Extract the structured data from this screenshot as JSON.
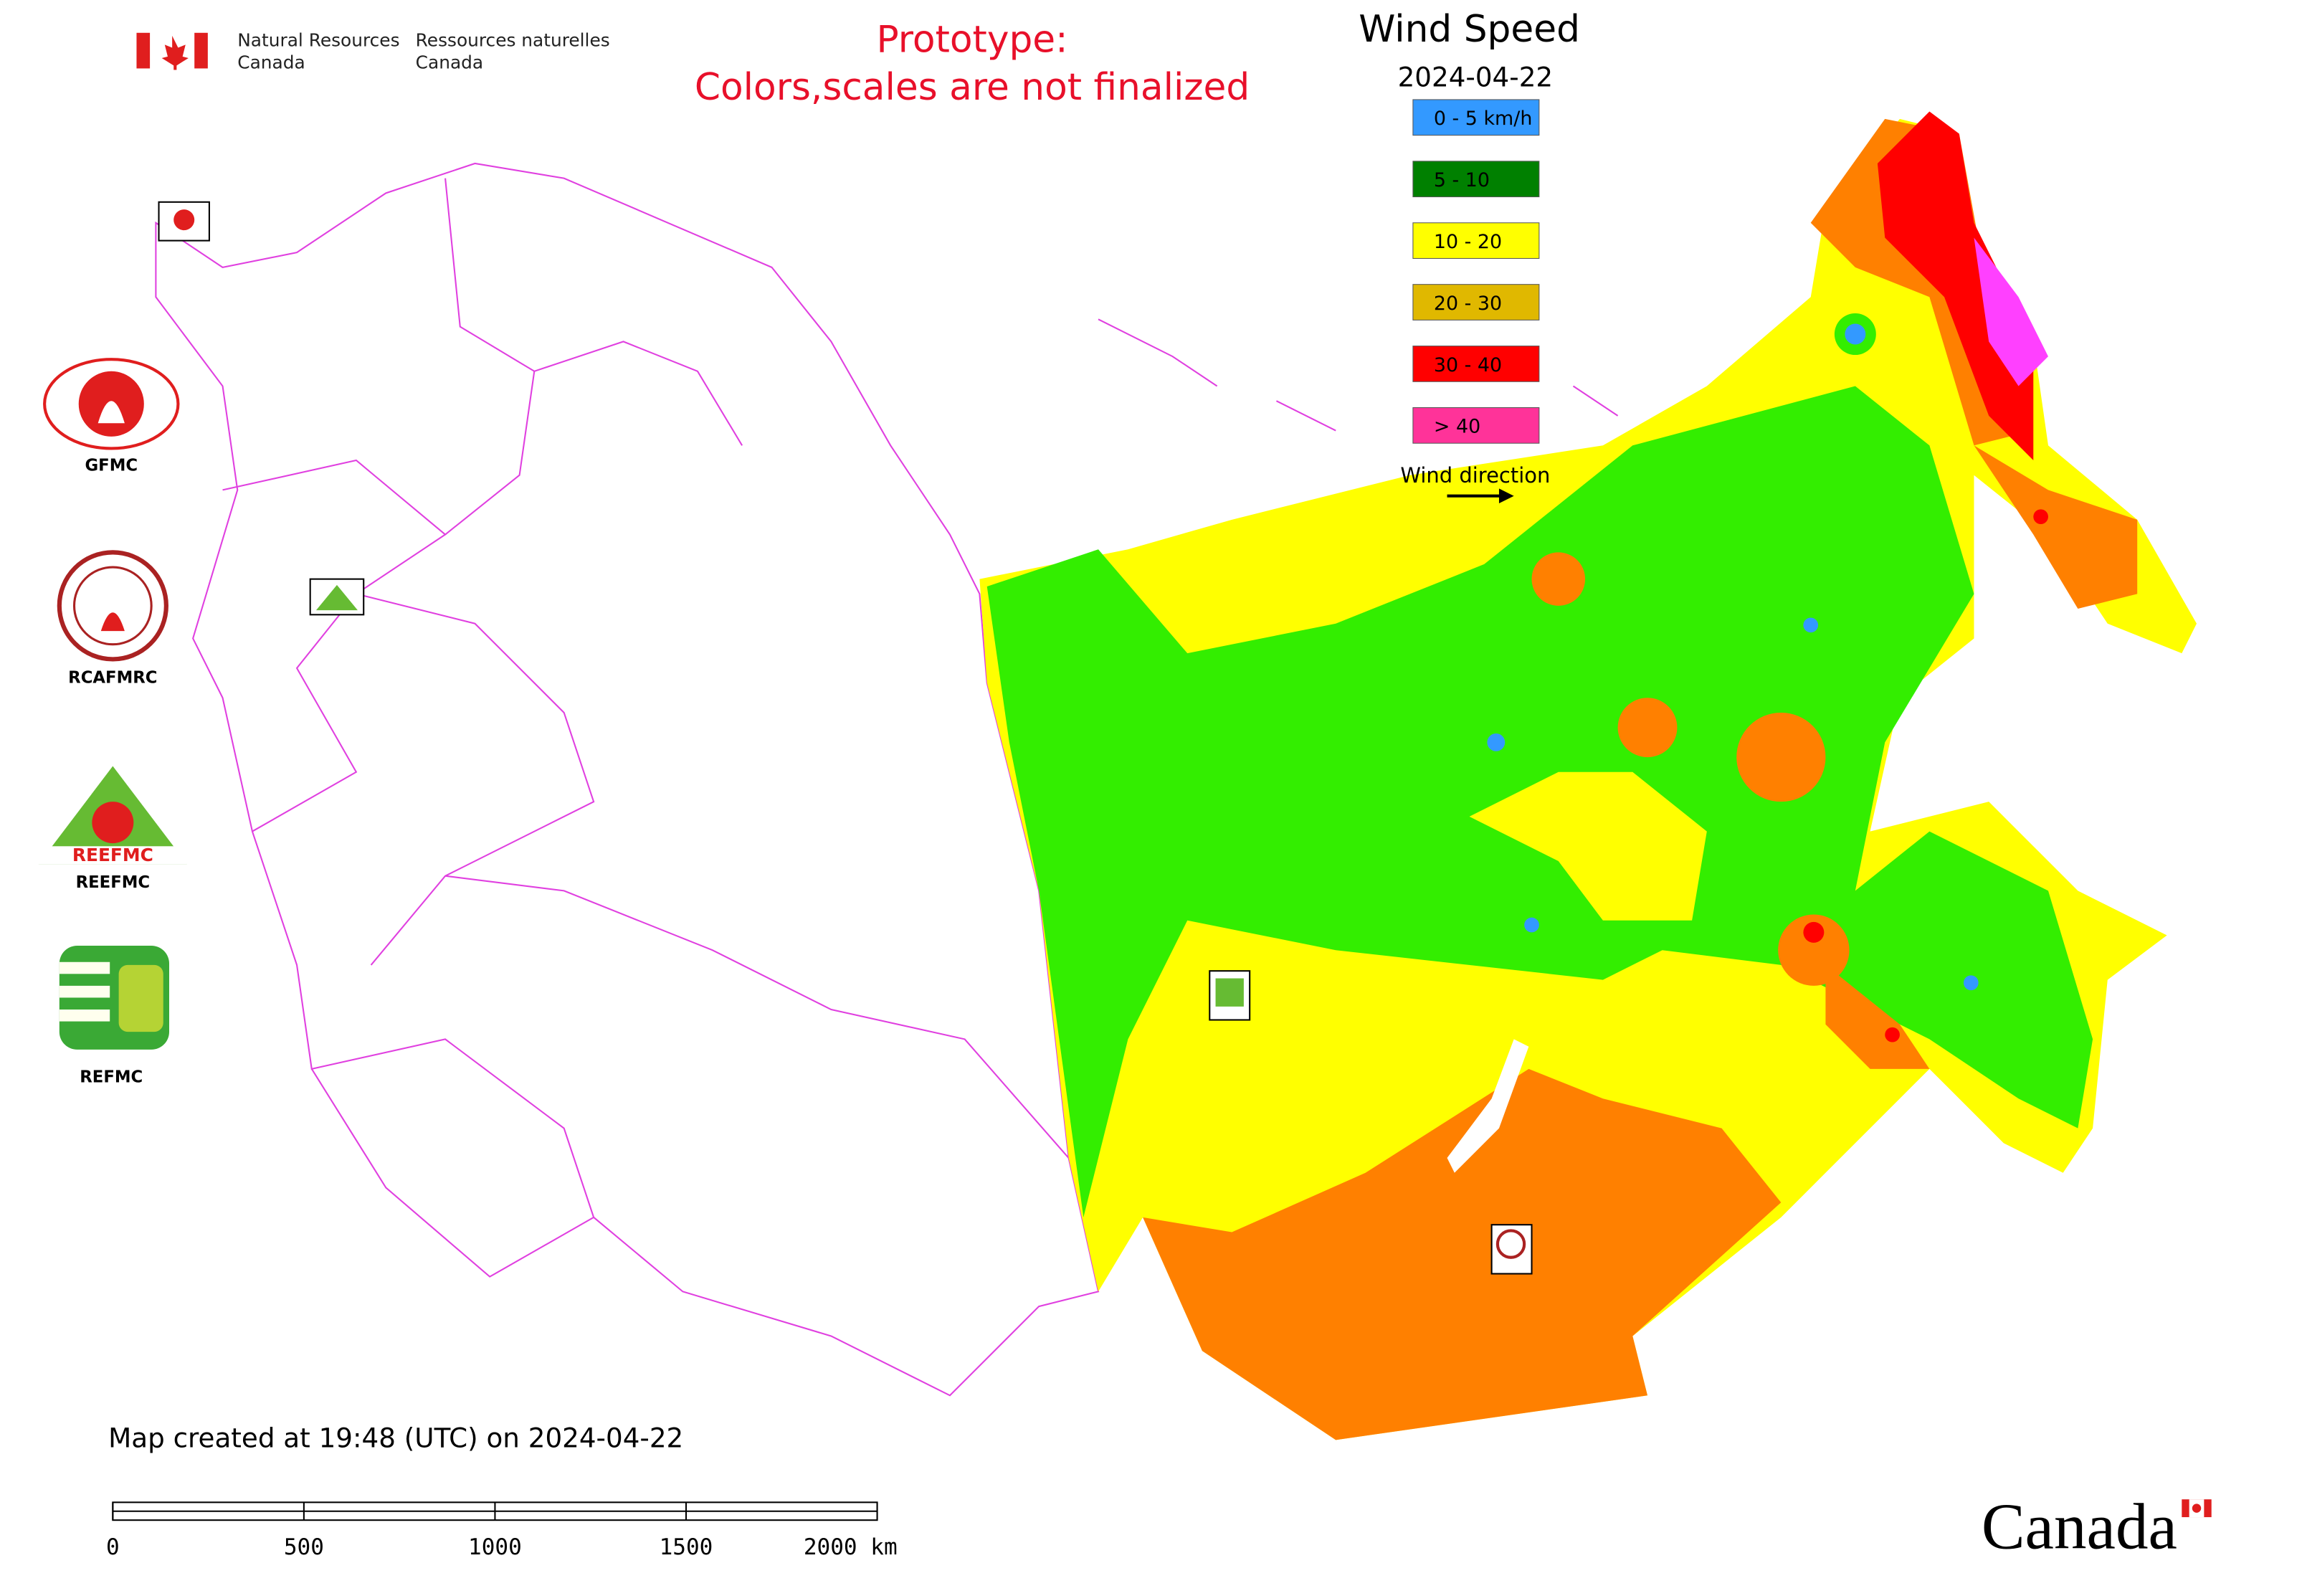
{
  "header": {
    "org_en_1": "Natural Resources",
    "org_en_2": "Canada",
    "org_fr_1": "Ressources naturelles",
    "org_fr_2": "Canada"
  },
  "notice": {
    "line1": "Prototype:",
    "line2": "Colors,scales are not finalized"
  },
  "legend": {
    "title": "Wind Speed",
    "date": "2024-04-22",
    "items": [
      {
        "label": "0 - 5 km/h",
        "color": "#3399ff"
      },
      {
        "label": "5 - 10",
        "color": "#008000"
      },
      {
        "label": "10 - 20",
        "color": "#ffff00"
      },
      {
        "label": "20 - 30",
        "color": "#e0b800"
      },
      {
        "label": "30 - 40",
        "color": "#ff0000"
      },
      {
        "label": "> 40",
        "color": "#ff3399"
      }
    ],
    "direction": "Wind direction"
  },
  "logos": [
    "GFMC",
    "RCAFMRC",
    "REEFMC",
    "REFMC"
  ],
  "logo_wordmark": "REEFMC",
  "footer": {
    "created": "Map created at 19:48 (UTC) on 2024-04-22",
    "wordmark": "Canada"
  },
  "scale_bar": {
    "ticks": [
      0,
      500,
      1000,
      1500,
      {
        "value": 2000,
        "label": "2000 km"
      }
    ]
  }
}
